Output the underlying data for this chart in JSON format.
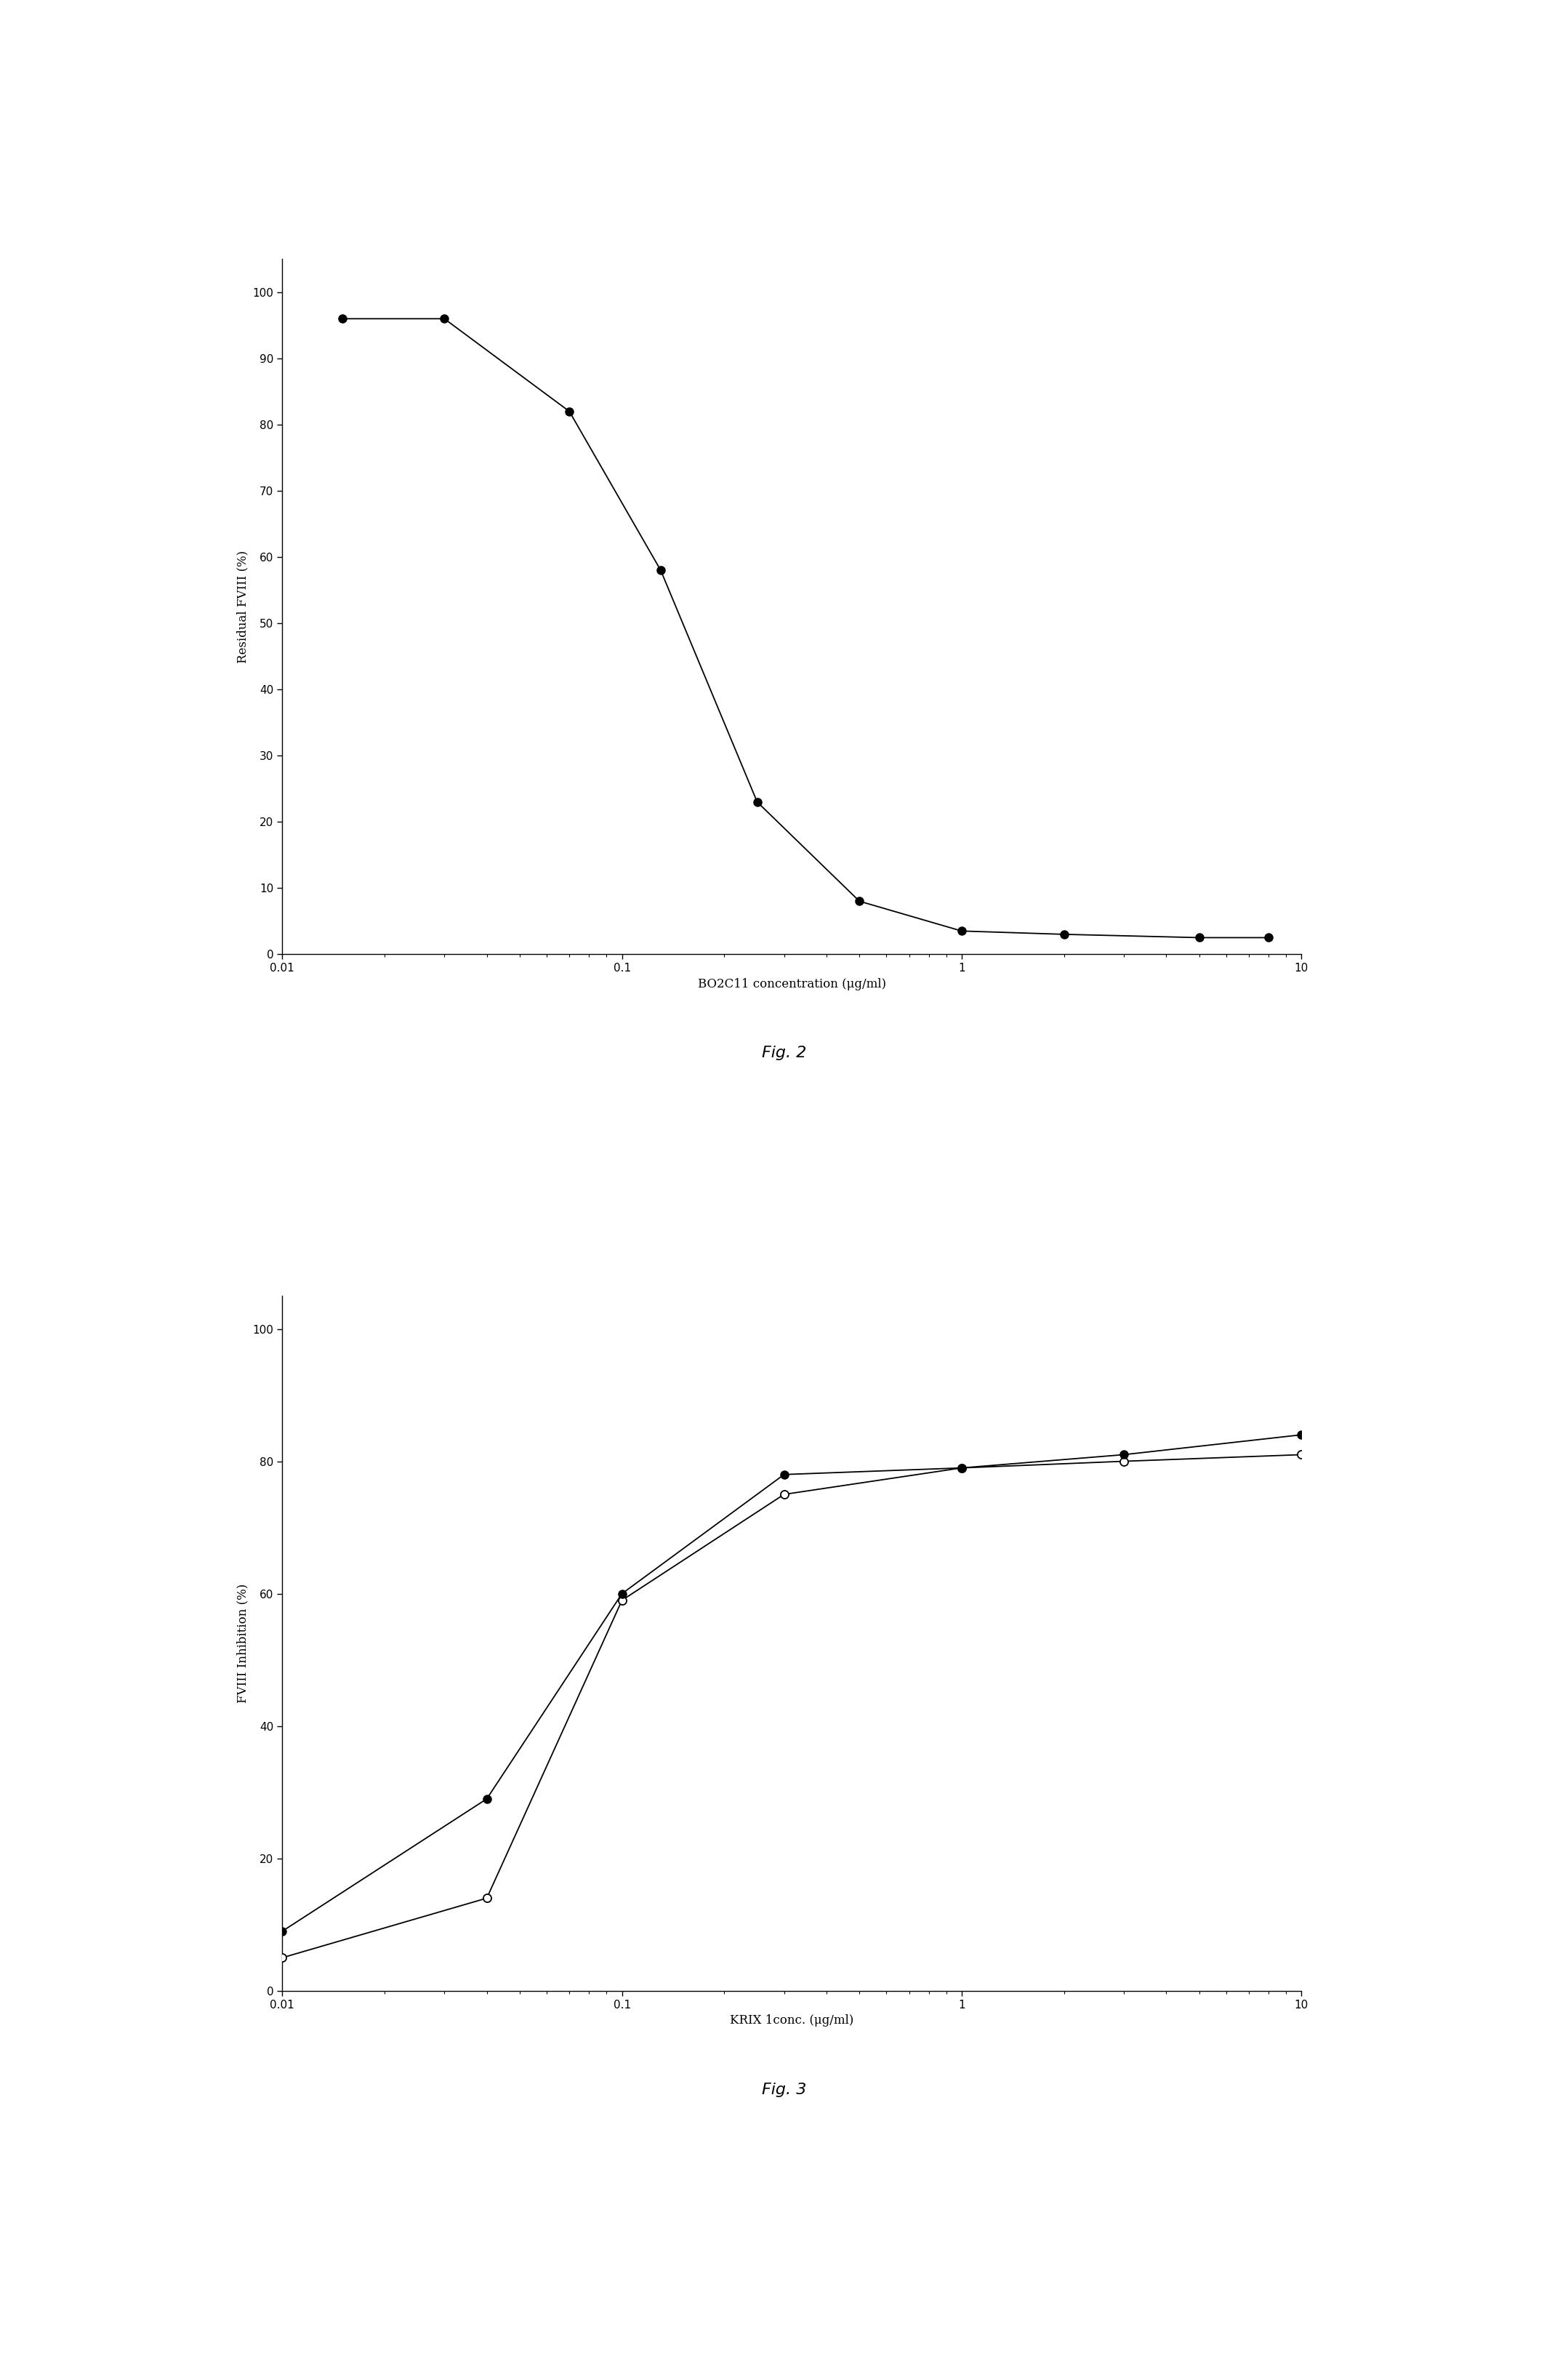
{
  "fig2": {
    "x": [
      0.015,
      0.03,
      0.07,
      0.13,
      0.25,
      0.5,
      1.0,
      2.0,
      5.0,
      8.0
    ],
    "y": [
      96,
      96,
      82,
      58,
      23,
      8,
      3.5,
      3,
      2.5,
      2.5
    ],
    "xlabel": "BO2C11 concentration (μg/ml)",
    "ylabel": "Residual FVIII (%)",
    "ylim": [
      0,
      105
    ],
    "yticks": [
      0,
      10,
      20,
      30,
      40,
      50,
      60,
      70,
      80,
      90,
      100
    ],
    "xlim": [
      0.01,
      10
    ],
    "fig_label": "Fig. 2"
  },
  "fig3": {
    "x_filled": [
      0.01,
      0.04,
      0.1,
      0.3,
      1.0,
      3.0,
      10.0
    ],
    "y_filled": [
      9,
      29,
      60,
      78,
      79,
      81,
      84
    ],
    "x_open": [
      0.01,
      0.04,
      0.1,
      0.3,
      1.0,
      3.0,
      10.0
    ],
    "y_open": [
      5,
      14,
      59,
      75,
      79,
      80,
      81
    ],
    "xlabel": "KRIX 1conc. (μg/ml)",
    "ylabel": "FVIII Inhibition (%)",
    "ylim": [
      0,
      105
    ],
    "yticks": [
      0,
      20,
      40,
      60,
      80,
      100
    ],
    "xlim": [
      0.01,
      10
    ],
    "fig_label": "Fig. 3"
  },
  "bg_color": "#ffffff",
  "line_color": "#000000",
  "marker_color_filled": "#000000",
  "marker_color_open": "#ffffff",
  "marker_size": 8,
  "line_width": 1.3,
  "tick_fontsize": 11,
  "label_fontsize": 12,
  "fig_label_fontsize": 16
}
